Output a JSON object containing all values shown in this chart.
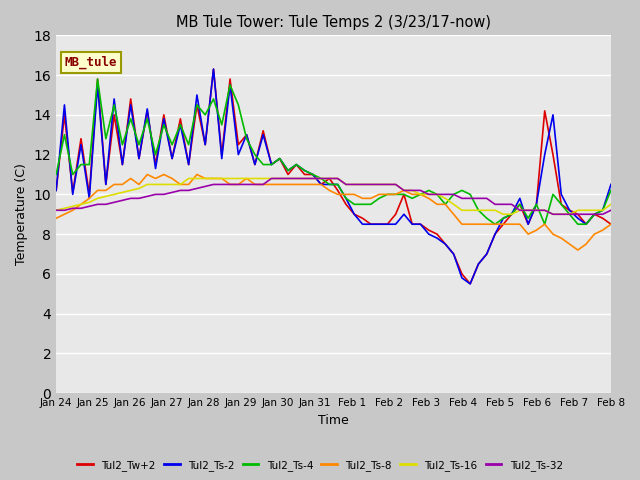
{
  "title": "MB Tule Tower: Tule Temps 2 (3/23/17-now)",
  "xlabel": "Time",
  "ylabel": "Temperature (C)",
  "ylim": [
    0,
    18
  ],
  "yticks": [
    0,
    2,
    4,
    6,
    8,
    10,
    12,
    14,
    16,
    18
  ],
  "fig_bg": "#c8c8c8",
  "plot_bg": "#e8e8e8",
  "grid_color": "#ffffff",
  "annotation_text": "MB_tule",
  "annotation_color": "#880000",
  "annotation_bg": "#ffffcc",
  "annotation_border": "#999900",
  "series_colors": {
    "Tul2_Tw+2": "#dd0000",
    "Tul2_Ts-2": "#0000ee",
    "Tul2_Ts-4": "#00bb00",
    "Tul2_Ts-8": "#ff8800",
    "Tul2_Ts-16": "#dddd00",
    "Tul2_Ts-32": "#9900aa"
  },
  "x_tick_labels": [
    "Jan 24",
    "Jan 25",
    "Jan 26",
    "Jan 27",
    "Jan 28",
    "Jan 29",
    "Jan 30",
    "Jan 31",
    "Feb 1",
    "Feb 2",
    "Feb 3",
    "Feb 4",
    "Feb 5",
    "Feb 6",
    "Feb 7",
    "Feb 8"
  ],
  "x_tick_positions": [
    0,
    1,
    2,
    3,
    4,
    5,
    6,
    7,
    8,
    9,
    10,
    11,
    12,
    13,
    14,
    15
  ],
  "series": {
    "Tul2_Tw+2": [
      10.2,
      14.0,
      10.1,
      12.8,
      10.0,
      15.8,
      10.5,
      14.0,
      11.5,
      14.8,
      11.8,
      14.2,
      11.5,
      14.0,
      11.8,
      13.8,
      11.5,
      14.5,
      12.5,
      16.3,
      12.0,
      15.8,
      12.5,
      13.0,
      11.5,
      13.2,
      11.5,
      11.8,
      11.0,
      11.5,
      11.0,
      11.0,
      10.5,
      10.8,
      10.2,
      9.5,
      9.0,
      8.8,
      8.5,
      8.5,
      8.5,
      9.0,
      10.0,
      8.5,
      8.5,
      8.2,
      8.0,
      7.5,
      7.0,
      6.0,
      5.5,
      6.5,
      7.0,
      8.0,
      8.5,
      9.0,
      9.5,
      8.5,
      9.5,
      14.2,
      12.0,
      9.5,
      9.2,
      9.0,
      8.5,
      9.0,
      8.8,
      8.5
    ],
    "Tul2_Ts-2": [
      10.2,
      14.5,
      10.0,
      12.5,
      9.8,
      15.5,
      10.5,
      14.8,
      11.5,
      14.5,
      11.8,
      14.3,
      11.3,
      13.8,
      11.8,
      13.5,
      11.5,
      15.0,
      12.5,
      16.3,
      11.8,
      15.5,
      12.0,
      13.0,
      11.5,
      13.0,
      11.5,
      11.8,
      11.2,
      11.5,
      11.2,
      11.0,
      10.5,
      10.5,
      10.5,
      9.8,
      9.0,
      8.5,
      8.5,
      8.5,
      8.5,
      8.5,
      9.0,
      8.5,
      8.5,
      8.0,
      7.8,
      7.5,
      7.0,
      5.8,
      5.5,
      6.5,
      7.0,
      8.0,
      8.8,
      9.0,
      9.8,
      8.5,
      9.5,
      12.0,
      14.0,
      10.0,
      9.2,
      8.8,
      8.5,
      9.0,
      9.2,
      10.5
    ],
    "Tul2_Ts-4": [
      11.0,
      13.0,
      11.0,
      11.5,
      11.5,
      15.8,
      12.8,
      14.5,
      12.5,
      13.8,
      12.5,
      13.8,
      12.0,
      13.5,
      12.5,
      13.5,
      12.5,
      14.5,
      14.0,
      14.8,
      13.5,
      15.5,
      14.5,
      12.8,
      12.0,
      11.5,
      11.5,
      11.8,
      11.2,
      11.5,
      11.2,
      11.0,
      10.8,
      10.5,
      10.5,
      9.8,
      9.5,
      9.5,
      9.5,
      9.8,
      10.0,
      10.0,
      10.0,
      9.8,
      10.0,
      10.2,
      10.0,
      9.5,
      10.0,
      10.2,
      10.0,
      9.2,
      8.8,
      8.5,
      8.8,
      9.0,
      9.5,
      8.8,
      9.5,
      8.5,
      10.0,
      9.5,
      9.0,
      8.5,
      8.5,
      9.0,
      9.2,
      10.2
    ],
    "Tul2_Ts-8": [
      8.8,
      9.0,
      9.2,
      9.5,
      9.8,
      10.2,
      10.2,
      10.5,
      10.5,
      10.8,
      10.5,
      11.0,
      10.8,
      11.0,
      10.8,
      10.5,
      10.5,
      11.0,
      10.8,
      10.8,
      10.8,
      10.5,
      10.5,
      10.8,
      10.5,
      10.5,
      10.5,
      10.5,
      10.5,
      10.5,
      10.5,
      10.5,
      10.5,
      10.2,
      10.0,
      10.0,
      10.0,
      9.8,
      9.8,
      10.0,
      10.0,
      10.0,
      10.2,
      10.0,
      10.0,
      9.8,
      9.5,
      9.5,
      9.0,
      8.5,
      8.5,
      8.5,
      8.5,
      8.5,
      8.5,
      8.5,
      8.5,
      8.0,
      8.2,
      8.5,
      8.0,
      7.8,
      7.5,
      7.2,
      7.5,
      8.0,
      8.2,
      8.5
    ],
    "Tul2_Ts-16": [
      9.2,
      9.3,
      9.4,
      9.5,
      9.6,
      9.8,
      9.9,
      10.0,
      10.1,
      10.2,
      10.3,
      10.5,
      10.5,
      10.5,
      10.5,
      10.5,
      10.8,
      10.8,
      10.8,
      10.8,
      10.8,
      10.8,
      10.8,
      10.8,
      10.8,
      10.8,
      10.8,
      10.8,
      10.8,
      10.8,
      10.8,
      10.8,
      10.8,
      10.8,
      10.8,
      10.5,
      10.5,
      10.5,
      10.5,
      10.5,
      10.5,
      10.5,
      10.2,
      10.2,
      10.0,
      10.0,
      10.0,
      9.8,
      9.5,
      9.2,
      9.2,
      9.2,
      9.2,
      9.2,
      9.0,
      9.0,
      9.2,
      9.2,
      9.2,
      9.2,
      9.0,
      9.0,
      9.0,
      9.2,
      9.2,
      9.2,
      9.2,
      9.5
    ],
    "Tul2_Ts-32": [
      9.2,
      9.2,
      9.3,
      9.3,
      9.4,
      9.5,
      9.5,
      9.6,
      9.7,
      9.8,
      9.8,
      9.9,
      10.0,
      10.0,
      10.1,
      10.2,
      10.2,
      10.3,
      10.4,
      10.5,
      10.5,
      10.5,
      10.5,
      10.5,
      10.5,
      10.5,
      10.8,
      10.8,
      10.8,
      10.8,
      10.8,
      10.8,
      10.8,
      10.8,
      10.8,
      10.5,
      10.5,
      10.5,
      10.5,
      10.5,
      10.5,
      10.5,
      10.2,
      10.2,
      10.2,
      10.0,
      10.0,
      10.0,
      10.0,
      9.8,
      9.8,
      9.8,
      9.8,
      9.5,
      9.5,
      9.5,
      9.2,
      9.2,
      9.2,
      9.2,
      9.0,
      9.0,
      9.0,
      9.0,
      9.0,
      9.0,
      9.0,
      9.2
    ]
  }
}
